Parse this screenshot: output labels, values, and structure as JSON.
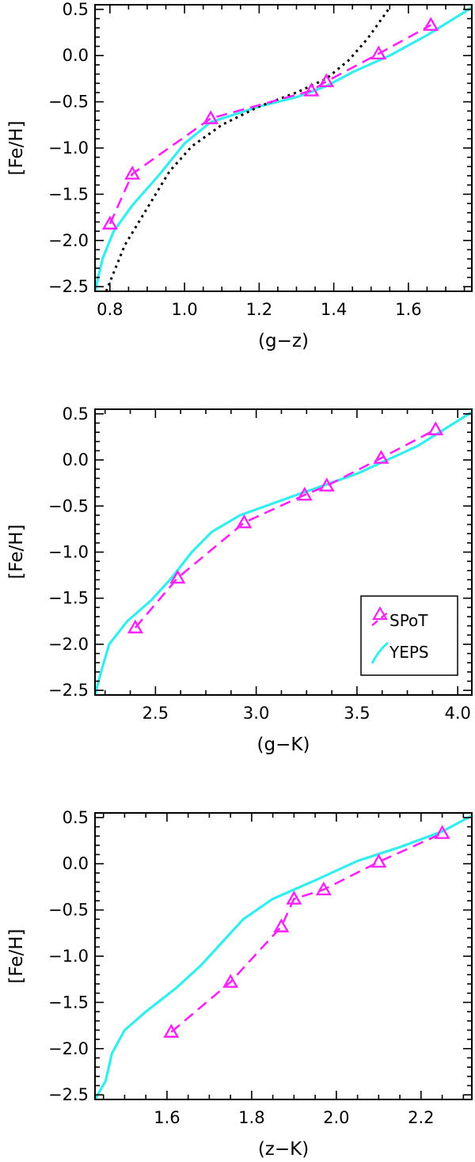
{
  "chart_data": [
    {
      "type": "line",
      "xlabel": "(g−z)",
      "ylabel": "[Fe/H]",
      "xlim": [
        0.76,
        1.77
      ],
      "ylim": [
        -2.55,
        0.55
      ],
      "xticks": [
        0.8,
        1.0,
        1.2,
        1.4,
        1.6
      ],
      "xtick_labels": [
        "0.8",
        "1.0",
        "1.2",
        "1.4",
        "1.6"
      ],
      "yticks": [
        0.5,
        0.0,
        -0.5,
        -1.0,
        -1.5,
        -2.0,
        -2.5
      ],
      "ytick_labels": [
        "0.5",
        "0.0",
        "−0.5",
        "−1.0",
        "−1.5",
        "−2.0",
        "−2.5"
      ],
      "series": [
        {
          "name": "SPoT",
          "style": "dashed",
          "marker": "triangle",
          "color": "#ff22ff",
          "x": [
            0.8,
            0.86,
            1.07,
            1.34,
            1.38,
            1.52,
            1.66
          ],
          "y": [
            -1.82,
            -1.28,
            -0.68,
            -0.38,
            -0.28,
            0.02,
            0.33
          ]
        },
        {
          "name": "YEPS",
          "style": "solid",
          "color": "#33eeee",
          "x": [
            0.76,
            0.78,
            0.81,
            0.86,
            0.93,
            1.0,
            1.07,
            1.2,
            1.3,
            1.38,
            1.45,
            1.55,
            1.65,
            1.77
          ],
          "y": [
            -2.55,
            -2.2,
            -1.9,
            -1.62,
            -1.3,
            -0.95,
            -0.72,
            -0.55,
            -0.45,
            -0.33,
            -0.18,
            0.0,
            0.22,
            0.52
          ]
        },
        {
          "name": "",
          "style": "dotted",
          "color": "#000000",
          "x": [
            0.79,
            0.84,
            0.9,
            0.96,
            1.02,
            1.1,
            1.2,
            1.3,
            1.38,
            1.44,
            1.49,
            1.52,
            1.55
          ],
          "y": [
            -2.55,
            -2.05,
            -1.65,
            -1.25,
            -0.98,
            -0.75,
            -0.55,
            -0.4,
            -0.25,
            -0.05,
            0.18,
            0.35,
            0.52
          ]
        }
      ]
    },
    {
      "type": "line",
      "xlabel": "(g−K)",
      "ylabel": "[Fe/H]",
      "xlim": [
        2.2,
        4.07
      ],
      "ylim": [
        -2.55,
        0.55
      ],
      "xticks": [
        2.5,
        3.0,
        3.5,
        4.0
      ],
      "xtick_labels": [
        "2.5",
        "3.0",
        "3.5",
        "4.0"
      ],
      "yticks": [
        0.5,
        0.0,
        -0.5,
        -1.0,
        -1.5,
        -2.0,
        -2.5
      ],
      "ytick_labels": [
        "0.5",
        "0.0",
        "−0.5",
        "−1.0",
        "−1.5",
        "−2.0",
        "−2.5"
      ],
      "legend": {
        "entries": [
          "SPoT",
          "YEPS"
        ],
        "position": "lower-right"
      },
      "series": [
        {
          "name": "SPoT",
          "style": "dashed",
          "marker": "triangle",
          "color": "#ff22ff",
          "x": [
            2.4,
            2.61,
            2.94,
            3.24,
            3.35,
            3.62,
            3.89
          ],
          "y": [
            -1.82,
            -1.28,
            -0.68,
            -0.38,
            -0.28,
            0.02,
            0.33
          ]
        },
        {
          "name": "YEPS",
          "style": "solid",
          "color": "#33eeee",
          "x": [
            2.2,
            2.23,
            2.27,
            2.36,
            2.48,
            2.58,
            2.68,
            2.78,
            2.92,
            3.2,
            3.5,
            3.8,
            4.07
          ],
          "y": [
            -2.55,
            -2.3,
            -2.0,
            -1.75,
            -1.52,
            -1.28,
            -1.0,
            -0.78,
            -0.6,
            -0.38,
            -0.15,
            0.15,
            0.52
          ]
        }
      ]
    },
    {
      "type": "line",
      "xlabel": "(z−K)",
      "ylabel": "[Fe/H]",
      "xlim": [
        1.43,
        2.32
      ],
      "ylim": [
        -2.55,
        0.55
      ],
      "xticks": [
        1.6,
        1.8,
        2.0,
        2.2
      ],
      "xtick_labels": [
        "1.6",
        "1.8",
        "2.0",
        "2.2"
      ],
      "yticks": [
        0.5,
        0.0,
        -0.5,
        -1.0,
        -1.5,
        -2.0,
        -2.5
      ],
      "ytick_labels": [
        "0.5",
        "0.0",
        "−0.5",
        "−1.0",
        "−1.5",
        "−2.0",
        "−2.5"
      ],
      "series": [
        {
          "name": "SPoT",
          "style": "dashed",
          "marker": "triangle",
          "color": "#ff22ff",
          "x": [
            1.61,
            1.75,
            1.87,
            1.9,
            1.97,
            2.1,
            2.25
          ],
          "y": [
            -1.82,
            -1.28,
            -0.68,
            -0.38,
            -0.28,
            0.02,
            0.33
          ]
        },
        {
          "name": "YEPS",
          "style": "solid",
          "color": "#33eeee",
          "x": [
            1.43,
            1.455,
            1.47,
            1.5,
            1.55,
            1.62,
            1.68,
            1.73,
            1.78,
            1.85,
            1.95,
            2.05,
            2.15,
            2.25,
            2.32
          ],
          "y": [
            -2.55,
            -2.35,
            -2.05,
            -1.8,
            -1.6,
            -1.35,
            -1.1,
            -0.85,
            -0.6,
            -0.38,
            -0.18,
            0.03,
            0.18,
            0.35,
            0.52
          ]
        }
      ]
    }
  ]
}
